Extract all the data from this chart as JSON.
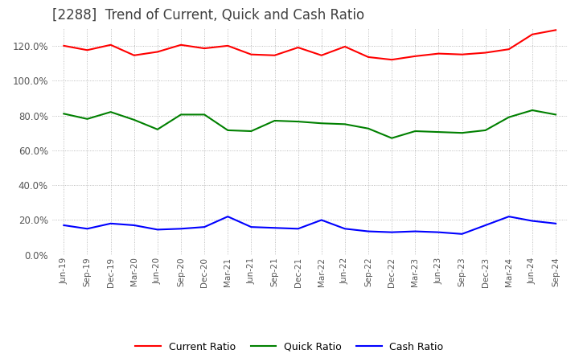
{
  "title": "[2288]  Trend of Current, Quick and Cash Ratio",
  "x_labels": [
    "Jun-19",
    "Sep-19",
    "Dec-19",
    "Mar-20",
    "Jun-20",
    "Sep-20",
    "Dec-20",
    "Mar-21",
    "Jun-21",
    "Sep-21",
    "Dec-21",
    "Mar-22",
    "Jun-22",
    "Sep-22",
    "Dec-22",
    "Mar-23",
    "Jun-23",
    "Sep-23",
    "Dec-23",
    "Mar-24",
    "Jun-24",
    "Sep-24"
  ],
  "current_ratio": [
    120.0,
    117.5,
    120.5,
    114.5,
    116.5,
    120.5,
    118.5,
    120.0,
    115.0,
    114.5,
    119.0,
    114.5,
    119.5,
    113.5,
    112.0,
    114.0,
    115.5,
    115.0,
    116.0,
    118.0,
    126.5,
    129.0
  ],
  "quick_ratio": [
    81.0,
    78.0,
    82.0,
    77.5,
    72.0,
    80.5,
    80.5,
    71.5,
    71.0,
    77.0,
    76.5,
    75.5,
    75.0,
    72.5,
    67.0,
    71.0,
    70.5,
    70.0,
    71.5,
    79.0,
    83.0,
    80.5
  ],
  "cash_ratio": [
    17.0,
    15.0,
    18.0,
    17.0,
    14.5,
    15.0,
    16.0,
    22.0,
    16.0,
    15.5,
    15.0,
    20.0,
    15.0,
    13.5,
    13.0,
    13.5,
    13.0,
    12.0,
    17.0,
    22.0,
    19.5,
    18.0
  ],
  "current_color": "#ff0000",
  "quick_color": "#008000",
  "cash_color": "#0000ff",
  "ylim": [
    0,
    130
  ],
  "yticks": [
    0,
    20,
    40,
    60,
    80,
    100,
    120
  ],
  "background_color": "#ffffff",
  "grid_color": "#aaaaaa",
  "title_color": "#404040",
  "tick_color": "#555555"
}
